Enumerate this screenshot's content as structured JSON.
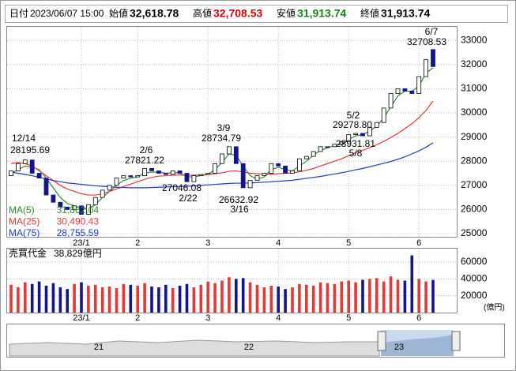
{
  "chart_data": {
    "type": "candlestick",
    "header": {
      "date_label": "日付",
      "datetime": "2023/06/07 15:00",
      "fields": [
        {
          "name": "始値",
          "value": {
            "value": 32618.78,
            "label": "32,618.78"
          }
        },
        {
          "name": "高値",
          "value": {
            "value": 32708.53,
            "label": "32,708.53"
          }
        },
        {
          "name": "安値",
          "value": {
            "value": 31913.74,
            "label": "31,913.74"
          }
        },
        {
          "name": "終値",
          "value": {
            "value": 31913.74,
            "label": "31,913.74"
          }
        }
      ]
    },
    "categories": [
      null,
      null,
      null,
      null,
      null,
      null,
      null,
      null,
      null,
      null,
      "23/1",
      null,
      null,
      null,
      null,
      null,
      null,
      null,
      "2",
      null,
      null,
      null,
      null,
      null,
      null,
      null,
      null,
      null,
      "3",
      null,
      null,
      null,
      null,
      null,
      null,
      null,
      null,
      null,
      "4",
      null,
      null,
      null,
      null,
      null,
      null,
      null,
      null,
      null,
      "5",
      null,
      null,
      null,
      null,
      null,
      null,
      null,
      null,
      null,
      "6",
      null,
      null
    ],
    "open": [
      27400,
      27600,
      27900,
      28050,
      27500,
      27300,
      26600,
      26300,
      26100,
      26000,
      26150,
      25800,
      26200,
      26500,
      26800,
      27000,
      27300,
      27400,
      27350,
      27400,
      27700,
      27600,
      27500,
      27450,
      27600,
      27500,
      27150,
      27400,
      27450,
      27500,
      27900,
      28300,
      28600,
      27900,
      26900,
      27200,
      27400,
      27500,
      27900,
      27800,
      27500,
      27600,
      28100,
      28200,
      28400,
      28600,
      28600,
      28700,
      28800,
      29100,
      29150,
      29050,
      29400,
      29600,
      30200,
      30800,
      31000,
      30900,
      30800,
      31500,
      32618.78
    ],
    "close": [
      27600,
      27900,
      28050,
      27500,
      27300,
      26600,
      26300,
      26100,
      26000,
      26150,
      25800,
      26200,
      26500,
      26800,
      27000,
      27300,
      27400,
      27350,
      27400,
      27700,
      27600,
      27500,
      27450,
      27600,
      27500,
      27150,
      27400,
      27450,
      27500,
      27900,
      28300,
      28600,
      27900,
      26900,
      27200,
      27400,
      27500,
      27900,
      27800,
      27500,
      27600,
      28100,
      28200,
      28400,
      28600,
      28600,
      28700,
      28800,
      29100,
      29150,
      29050,
      29400,
      29600,
      30200,
      30800,
      31000,
      30900,
      30800,
      31500,
      32200,
      31913.74
    ],
    "series": [
      {
        "name": "MA(5)",
        "color": "#2e8b2e",
        "last": {
          "value": 31862.04,
          "label": "31,862.04"
        },
        "values": [
          27500,
          27650,
          27800,
          27750,
          27650,
          27300,
          26900,
          26500,
          26250,
          26150,
          26050,
          26050,
          26200,
          26500,
          26750,
          27000,
          27200,
          27300,
          27350,
          27500,
          27550,
          27550,
          27500,
          27520,
          27520,
          27350,
          27350,
          27400,
          27450,
          27650,
          27950,
          28300,
          28250,
          27800,
          27400,
          27250,
          27350,
          27650,
          27750,
          27650,
          27600,
          27800,
          28000,
          28250,
          28450,
          28550,
          28650,
          28700,
          28900,
          29050,
          29100,
          29250,
          29450,
          29800,
          30250,
          30700,
          30900,
          30900,
          31100,
          31650,
          31862.04
        ]
      },
      {
        "name": "MA(25)",
        "color": "#e53935",
        "last": {
          "value": 30490.43,
          "label": "30,490.43"
        },
        "values": [
          27900,
          27950,
          27900,
          27800,
          27600,
          27400,
          27200,
          27000,
          26850,
          26750,
          26650,
          26600,
          26600,
          26650,
          26750,
          26850,
          26950,
          27050,
          27150,
          27250,
          27330,
          27380,
          27400,
          27420,
          27430,
          27420,
          27420,
          27430,
          27450,
          27480,
          27520,
          27580,
          27600,
          27550,
          27500,
          27480,
          27460,
          27460,
          27480,
          27500,
          27520,
          27560,
          27620,
          27700,
          27800,
          27900,
          28000,
          28100,
          28230,
          28350,
          28450,
          28560,
          28680,
          28820,
          28980,
          29150,
          29350,
          29550,
          29800,
          30100,
          30490.43
        ]
      },
      {
        "name": "MA(75)",
        "color": "#1e3ad0",
        "last": {
          "value": 28755.59,
          "label": "28,755.59"
        },
        "values": [
          27550,
          27500,
          27450,
          27400,
          27330,
          27260,
          27200,
          27150,
          27100,
          27070,
          27040,
          27010,
          26980,
          26960,
          26940,
          26920,
          26910,
          26900,
          26900,
          26900,
          26910,
          26920,
          26930,
          26940,
          26950,
          26960,
          26980,
          27000,
          27020,
          27040,
          27060,
          27080,
          27090,
          27090,
          27100,
          27110,
          27130,
          27150,
          27170,
          27190,
          27210,
          27250,
          27290,
          27330,
          27370,
          27420,
          27470,
          27520,
          27580,
          27640,
          27700,
          27770,
          27840,
          27910,
          27990,
          28080,
          28180,
          28300,
          28430,
          28580,
          28755.59
        ]
      }
    ],
    "ylim": [
      24870,
      33560
    ],
    "yticks": [
      25000,
      26000,
      27000,
      28000,
      29000,
      30000,
      31000,
      32000,
      33000
    ],
    "grid": true,
    "up_color": "#ffffff",
    "down_color": "#14148c",
    "annotations": [
      {
        "date": "12/14",
        "value": 28195.69
      },
      {
        "date": "2/6",
        "value": 27821.22
      },
      {
        "date": "2/22",
        "value": 27046.08
      },
      {
        "date": "3/9",
        "value": 28734.79
      },
      {
        "date": "3/16",
        "value": 26632.92
      },
      {
        "date": "5/2",
        "value": {
          "value": 29278.8,
          "label": "29278.80"
        }
      },
      {
        "date": "5/8",
        "value": 28931.81
      },
      {
        "date": "6/7",
        "value": 32708.53
      }
    ],
    "volume": {
      "title": "売買代金",
      "total": {
        "value": 38829,
        "label": "38,829億円"
      },
      "unit": "(億円)",
      "up_color": "#e53935",
      "down_color": "#14148c",
      "ylim": [
        0,
        76000
      ],
      "yticks": [
        20000,
        40000,
        60000
      ],
      "values": [
        33000,
        30000,
        36000,
        34000,
        37000,
        32000,
        35000,
        30000,
        28000,
        34000,
        36000,
        32000,
        33000,
        30000,
        31000,
        29000,
        34000,
        33000,
        32000,
        35000,
        31000,
        30000,
        33000,
        29000,
        32000,
        34000,
        30000,
        33000,
        37000,
        35000,
        38000,
        42000,
        40000,
        41000,
        36000,
        33000,
        30000,
        32000,
        31000,
        28000,
        30000,
        34000,
        33000,
        32000,
        36000,
        35000,
        34000,
        37000,
        38000,
        36000,
        39000,
        40000,
        41000,
        37000,
        43000,
        39000,
        38000,
        68000,
        40000,
        37000,
        38829
      ]
    },
    "navigator": {
      "labels": [
        "21",
        "22",
        "23"
      ]
    }
  }
}
